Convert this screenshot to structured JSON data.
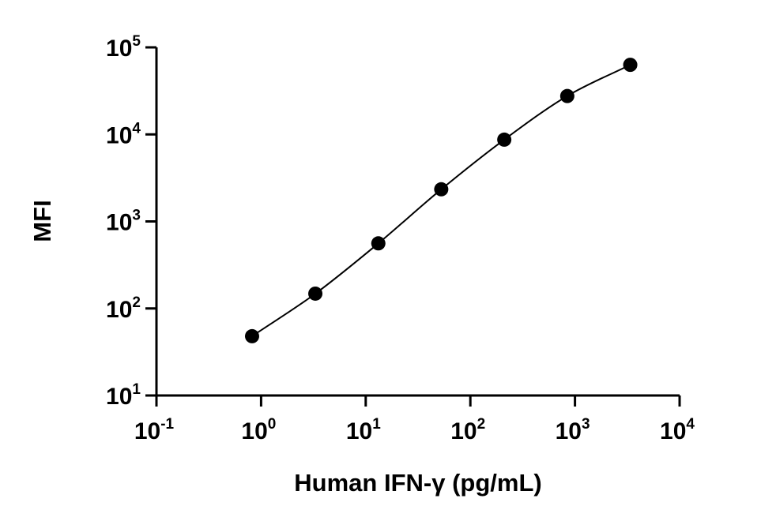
{
  "chart_data": {
    "type": "scatter",
    "title": "",
    "xlabel": "Human IFN-γ (pg/mL)",
    "ylabel": "MFI",
    "x_scale": "log",
    "y_scale": "log",
    "xlim": [
      0.1,
      10000
    ],
    "ylim": [
      10,
      100000
    ],
    "x_ticks": [
      {
        "value": 0.1,
        "base": "10",
        "exp": "-1"
      },
      {
        "value": 1,
        "base": "10",
        "exp": "0"
      },
      {
        "value": 10,
        "base": "10",
        "exp": "1"
      },
      {
        "value": 100,
        "base": "10",
        "exp": "2"
      },
      {
        "value": 1000,
        "base": "10",
        "exp": "3"
      },
      {
        "value": 10000,
        "base": "10",
        "exp": "4"
      }
    ],
    "y_ticks": [
      {
        "value": 10,
        "base": "10",
        "exp": "1"
      },
      {
        "value": 100,
        "base": "10",
        "exp": "2"
      },
      {
        "value": 1000,
        "base": "10",
        "exp": "3"
      },
      {
        "value": 10000,
        "base": "10",
        "exp": "4"
      },
      {
        "value": 100000,
        "base": "10",
        "exp": "5"
      }
    ],
    "grid": false,
    "legend": "none",
    "series": [
      {
        "x": [
          0.82,
          3.3,
          13.2,
          52.7,
          211,
          844,
          3375
        ],
        "y": [
          48,
          148,
          560,
          2340,
          8700,
          27600,
          63000
        ],
        "marker_color": "#000000",
        "fit_curve": true,
        "fit_color": "#000000"
      }
    ]
  }
}
